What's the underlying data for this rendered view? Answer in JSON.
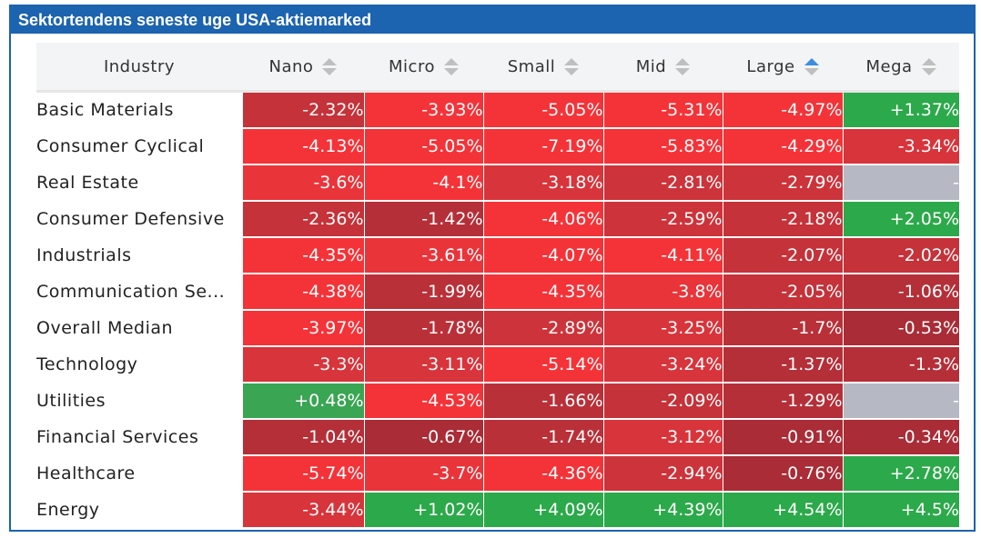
{
  "title": "Sektortendens seneste uge USA-aktiemarked",
  "colors": {
    "header_bar": "#1c63b0",
    "missing": "#b6b9c4",
    "strong_green": "#2ca94a",
    "red_bright": "#f43338",
    "red_dark": "#b52d38"
  },
  "columns": [
    {
      "label": "Industry",
      "sortable": false
    },
    {
      "label": "Nano",
      "sortable": true,
      "active": false
    },
    {
      "label": "Micro",
      "sortable": true,
      "active": false
    },
    {
      "label": "Small",
      "sortable": true,
      "active": false
    },
    {
      "label": "Mid",
      "sortable": true,
      "active": false
    },
    {
      "label": "Large",
      "sortable": true,
      "active": true
    },
    {
      "label": "Mega",
      "sortable": true,
      "active": false
    }
  ],
  "rows": [
    {
      "industry": "Basic Materials",
      "cells": [
        {
          "text": "-2.32%",
          "value": -2.32
        },
        {
          "text": "-3.93%",
          "value": -3.93
        },
        {
          "text": "-5.05%",
          "value": -5.05
        },
        {
          "text": "-5.31%",
          "value": -5.31
        },
        {
          "text": "-4.97%",
          "value": -4.97
        },
        {
          "text": "+1.37%",
          "value": 1.37
        }
      ]
    },
    {
      "industry": "Consumer Cyclical",
      "cells": [
        {
          "text": "-4.13%",
          "value": -4.13
        },
        {
          "text": "-5.05%",
          "value": -5.05
        },
        {
          "text": "-7.19%",
          "value": -7.19
        },
        {
          "text": "-5.83%",
          "value": -5.83
        },
        {
          "text": "-4.29%",
          "value": -4.29
        },
        {
          "text": "-3.34%",
          "value": -3.34
        }
      ]
    },
    {
      "industry": "Real Estate",
      "cells": [
        {
          "text": "-3.6%",
          "value": -3.6
        },
        {
          "text": "-4.1%",
          "value": -4.1
        },
        {
          "text": "-3.18%",
          "value": -3.18
        },
        {
          "text": "-2.81%",
          "value": -2.81
        },
        {
          "text": "-2.79%",
          "value": -2.79
        },
        {
          "text": "-",
          "value": null
        }
      ]
    },
    {
      "industry": "Consumer Defensive",
      "cells": [
        {
          "text": "-2.36%",
          "value": -2.36
        },
        {
          "text": "-1.42%",
          "value": -1.42
        },
        {
          "text": "-4.06%",
          "value": -4.06
        },
        {
          "text": "-2.59%",
          "value": -2.59
        },
        {
          "text": "-2.18%",
          "value": -2.18
        },
        {
          "text": "+2.05%",
          "value": 2.05
        }
      ]
    },
    {
      "industry": "Industrials",
      "cells": [
        {
          "text": "-4.35%",
          "value": -4.35
        },
        {
          "text": "-3.61%",
          "value": -3.61
        },
        {
          "text": "-4.07%",
          "value": -4.07
        },
        {
          "text": "-4.11%",
          "value": -4.11
        },
        {
          "text": "-2.07%",
          "value": -2.07
        },
        {
          "text": "-2.02%",
          "value": -2.02
        }
      ]
    },
    {
      "industry": "Communication Se...",
      "cells": [
        {
          "text": "-4.38%",
          "value": -4.38
        },
        {
          "text": "-1.99%",
          "value": -1.99
        },
        {
          "text": "-4.35%",
          "value": -4.35
        },
        {
          "text": "-3.8%",
          "value": -3.8
        },
        {
          "text": "-2.05%",
          "value": -2.05
        },
        {
          "text": "-1.06%",
          "value": -1.06
        }
      ]
    },
    {
      "industry": "Overall Median",
      "cells": [
        {
          "text": "-3.97%",
          "value": -3.97
        },
        {
          "text": "-1.78%",
          "value": -1.78
        },
        {
          "text": "-2.89%",
          "value": -2.89
        },
        {
          "text": "-3.25%",
          "value": -3.25
        },
        {
          "text": "-1.7%",
          "value": -1.7
        },
        {
          "text": "-0.53%",
          "value": -0.53
        }
      ]
    },
    {
      "industry": "Technology",
      "cells": [
        {
          "text": "-3.3%",
          "value": -3.3
        },
        {
          "text": "-3.11%",
          "value": -3.11
        },
        {
          "text": "-5.14%",
          "value": -5.14
        },
        {
          "text": "-3.24%",
          "value": -3.24
        },
        {
          "text": "-1.37%",
          "value": -1.37
        },
        {
          "text": "-1.3%",
          "value": -1.3
        }
      ]
    },
    {
      "industry": "Utilities",
      "cells": [
        {
          "text": "+0.48%",
          "value": 0.48
        },
        {
          "text": "-4.53%",
          "value": -4.53
        },
        {
          "text": "-1.66%",
          "value": -1.66
        },
        {
          "text": "-2.09%",
          "value": -2.09
        },
        {
          "text": "-1.29%",
          "value": -1.29
        },
        {
          "text": "-",
          "value": null
        }
      ]
    },
    {
      "industry": "Financial Services",
      "cells": [
        {
          "text": "-1.04%",
          "value": -1.04
        },
        {
          "text": "-0.67%",
          "value": -0.67
        },
        {
          "text": "-1.74%",
          "value": -1.74
        },
        {
          "text": "-3.12%",
          "value": -3.12
        },
        {
          "text": "-0.91%",
          "value": -0.91
        },
        {
          "text": "-0.34%",
          "value": -0.34
        }
      ]
    },
    {
      "industry": "Healthcare",
      "cells": [
        {
          "text": "-5.74%",
          "value": -5.74
        },
        {
          "text": "-3.7%",
          "value": -3.7
        },
        {
          "text": "-4.36%",
          "value": -4.36
        },
        {
          "text": "-2.94%",
          "value": -2.94
        },
        {
          "text": "-0.76%",
          "value": -0.76
        },
        {
          "text": "+2.78%",
          "value": 2.78
        }
      ]
    },
    {
      "industry": "Energy",
      "cells": [
        {
          "text": "-3.44%",
          "value": -3.44
        },
        {
          "text": "+1.02%",
          "value": 1.02
        },
        {
          "text": "+4.09%",
          "value": 4.09
        },
        {
          "text": "+4.39%",
          "value": 4.39
        },
        {
          "text": "+4.54%",
          "value": 4.54
        },
        {
          "text": "+4.5%",
          "value": 4.5
        }
      ]
    }
  ]
}
